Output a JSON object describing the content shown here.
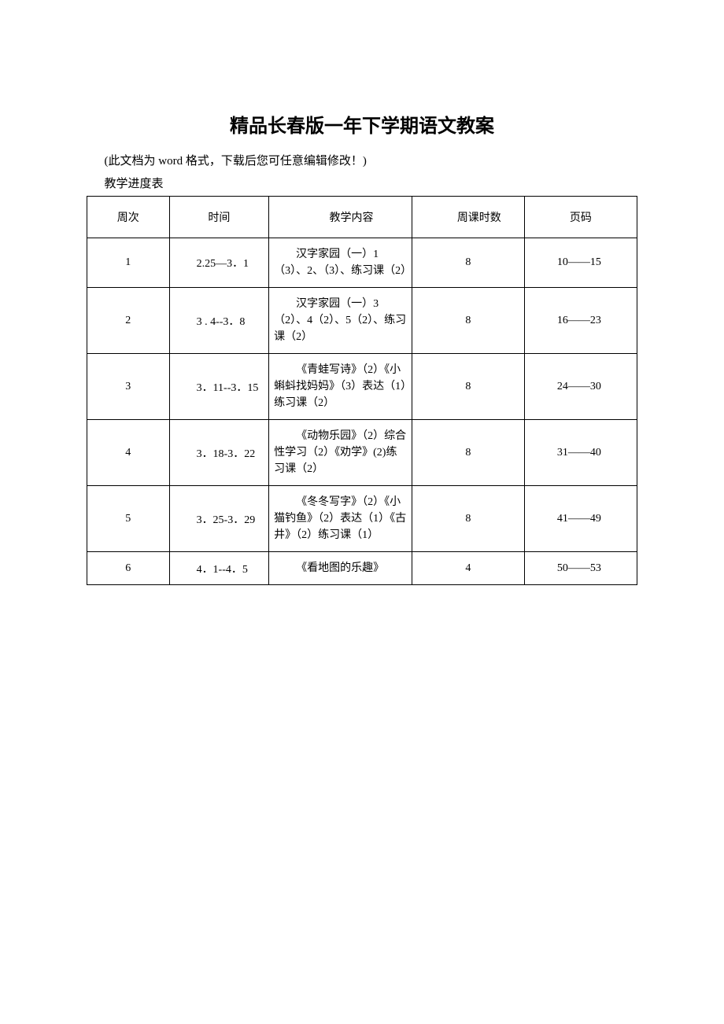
{
  "title": "精品长春版一年下学期语文教案",
  "note": "(此文档为 word 格式，下载后您可任意编辑修改！)",
  "subtitle": "教学进度表",
  "headers": {
    "week": "周次",
    "time": "时间",
    "content": "教学内容",
    "hours": "周课时数",
    "page": "页码"
  },
  "rows": [
    {
      "week": "1",
      "time": "2.25—3．1",
      "content": "汉字家园（一）1（3）、2、（3）、练习课（2）",
      "hours": "8",
      "page": "10——15"
    },
    {
      "week": "2",
      "time": "3 . 4--3．8",
      "content": "汉字家园（一）3（2）、4（2）、5（2）、练习课（2）",
      "hours": "8",
      "page": "16——23"
    },
    {
      "week": "3",
      "time": "3．11--3．15",
      "content": "《青蛙写诗》（2）《小蝌蚪找妈妈》（3）表达（1）练习课（2）",
      "hours": "8",
      "page": "24——30"
    },
    {
      "week": "4",
      "time": "3．18-3．22",
      "content": "《动物乐园》（2）综合性学习（2）《劝学》(2)练习课（2）",
      "hours": "8",
      "page": "31——40"
    },
    {
      "week": "5",
      "time": "3．25-3．29",
      "content": "《冬冬写字》（2）《小猫钓鱼》（2）表达（1）《古井》（2）练习课（1）",
      "hours": "8",
      "page": "41——49"
    },
    {
      "week": "6",
      "time": "4．1--4．5",
      "content": "《看地图的乐趣》",
      "hours": "4",
      "page": "50——53"
    }
  ]
}
